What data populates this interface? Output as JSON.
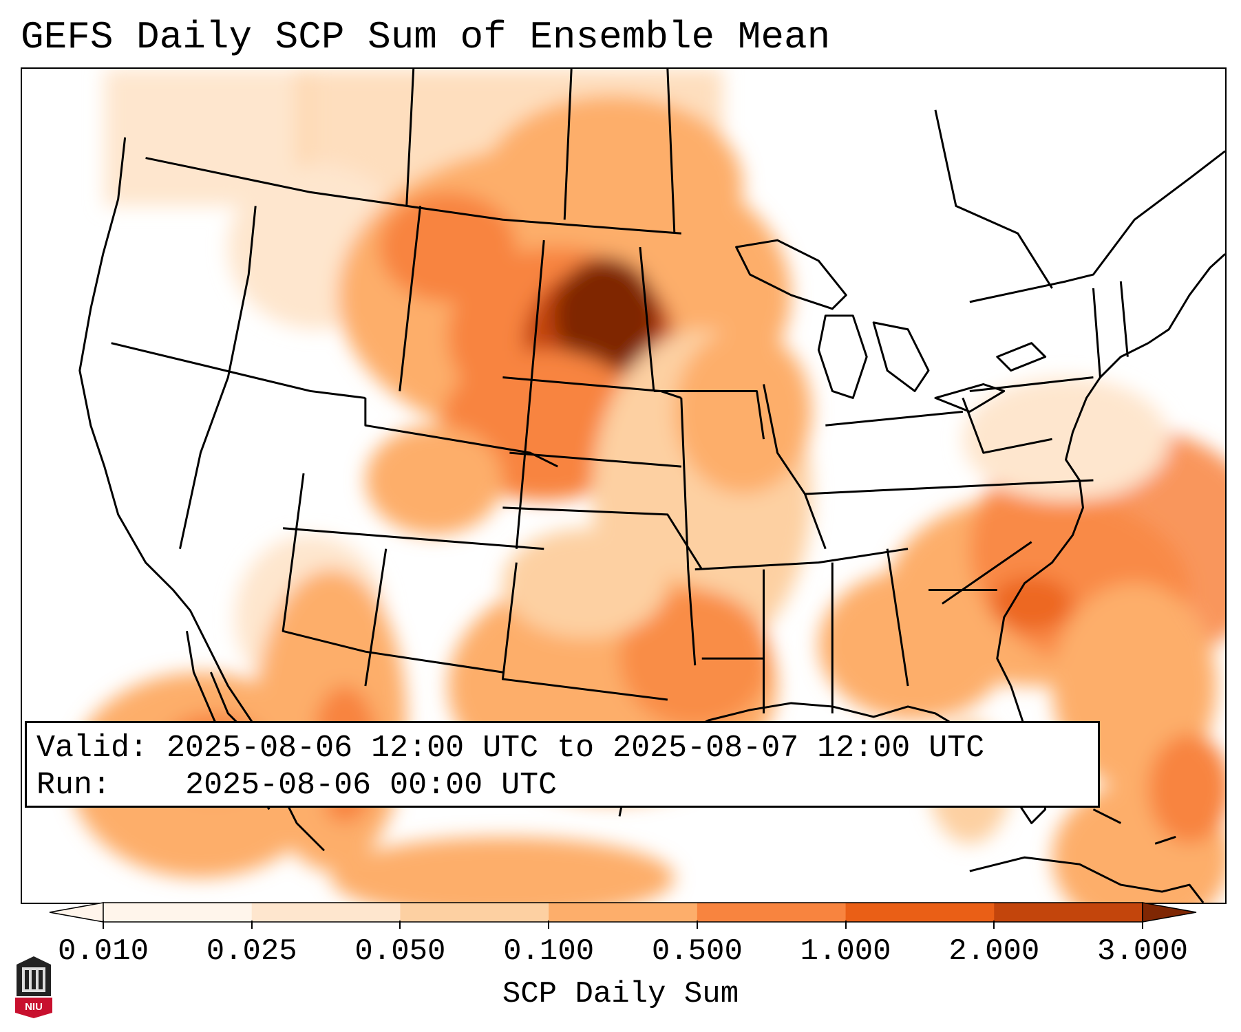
{
  "title": "GEFS Daily SCP Sum of Ensemble Mean",
  "info": {
    "valid_label": "Valid:",
    "valid_value": "2025-08-06 12:00 UTC to 2025-08-07 12:00 UTC",
    "run_label": "Run:",
    "run_value": "2025-08-06 00:00 UTC"
  },
  "colorbar": {
    "label": "SCP Daily Sum",
    "ticks": [
      "0.010",
      "0.025",
      "0.050",
      "0.100",
      "0.500",
      "1.000",
      "2.000",
      "3.000"
    ],
    "colors": [
      "#fff5eb",
      "#fee6ce",
      "#fdd0a2",
      "#fdae6b",
      "#f8843f",
      "#ea5f16",
      "#c3450c",
      "#7f2704"
    ],
    "extend": "both"
  },
  "logo": {
    "text": "NIU",
    "color": "#c8102e"
  }
}
